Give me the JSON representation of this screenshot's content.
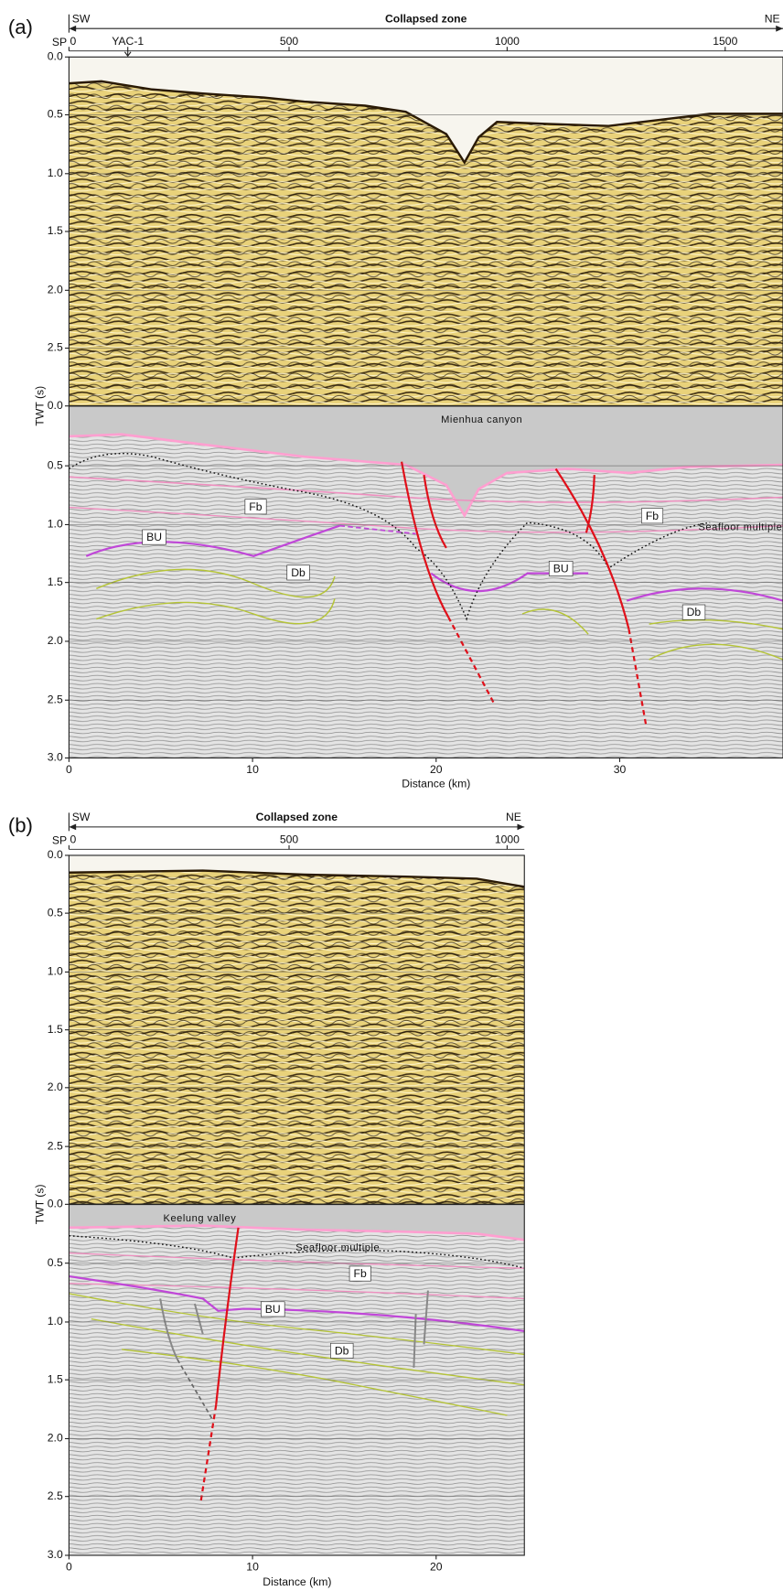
{
  "panels": [
    {
      "label": "(a)",
      "direction": {
        "left": "SW",
        "center": "Collapsed zone",
        "right": "NE"
      },
      "sp_axis": {
        "label": "SP",
        "ticks": [
          "0",
          "500",
          "1000",
          "1500"
        ],
        "well": "YAC-1"
      },
      "y_axis": {
        "title": "TWT (s)",
        "upper_ticks": [
          "0.0",
          "0.5",
          "1.0",
          "1.5",
          "2.0",
          "2.5",
          "0.0"
        ],
        "lower_ticks": [
          "0.5",
          "1.0",
          "1.5",
          "2.0",
          "2.5",
          "3.0"
        ]
      },
      "x_axis": {
        "title": "Distance (km)",
        "ticks": [
          "0",
          "10",
          "20",
          "30"
        ]
      },
      "annotations": [
        "Mienhua canyon",
        "Fb",
        "Fb",
        "BU",
        "BU",
        "Db",
        "Db",
        "Seafloor multiple"
      ]
    },
    {
      "label": "(b)",
      "direction": {
        "left": "SW",
        "center": "Collapsed zone",
        "right": "NE"
      },
      "sp_axis": {
        "label": "SP",
        "ticks": [
          "0",
          "500",
          "1000"
        ]
      },
      "y_axis": {
        "title": "TWT (s)",
        "upper_ticks": [
          "0.0",
          "0.5",
          "1.0",
          "1.5",
          "2.0",
          "2.5",
          "0.0"
        ],
        "lower_ticks": [
          "0.5",
          "1.0",
          "1.5",
          "2.0",
          "2.5",
          "3.0"
        ]
      },
      "x_axis": {
        "title": "Distance (km)",
        "ticks": [
          "0",
          "10",
          "20"
        ]
      },
      "annotations": [
        "Keelung valley",
        "Seafloor multiple",
        "Fb",
        "BU",
        "Db"
      ]
    }
  ]
}
